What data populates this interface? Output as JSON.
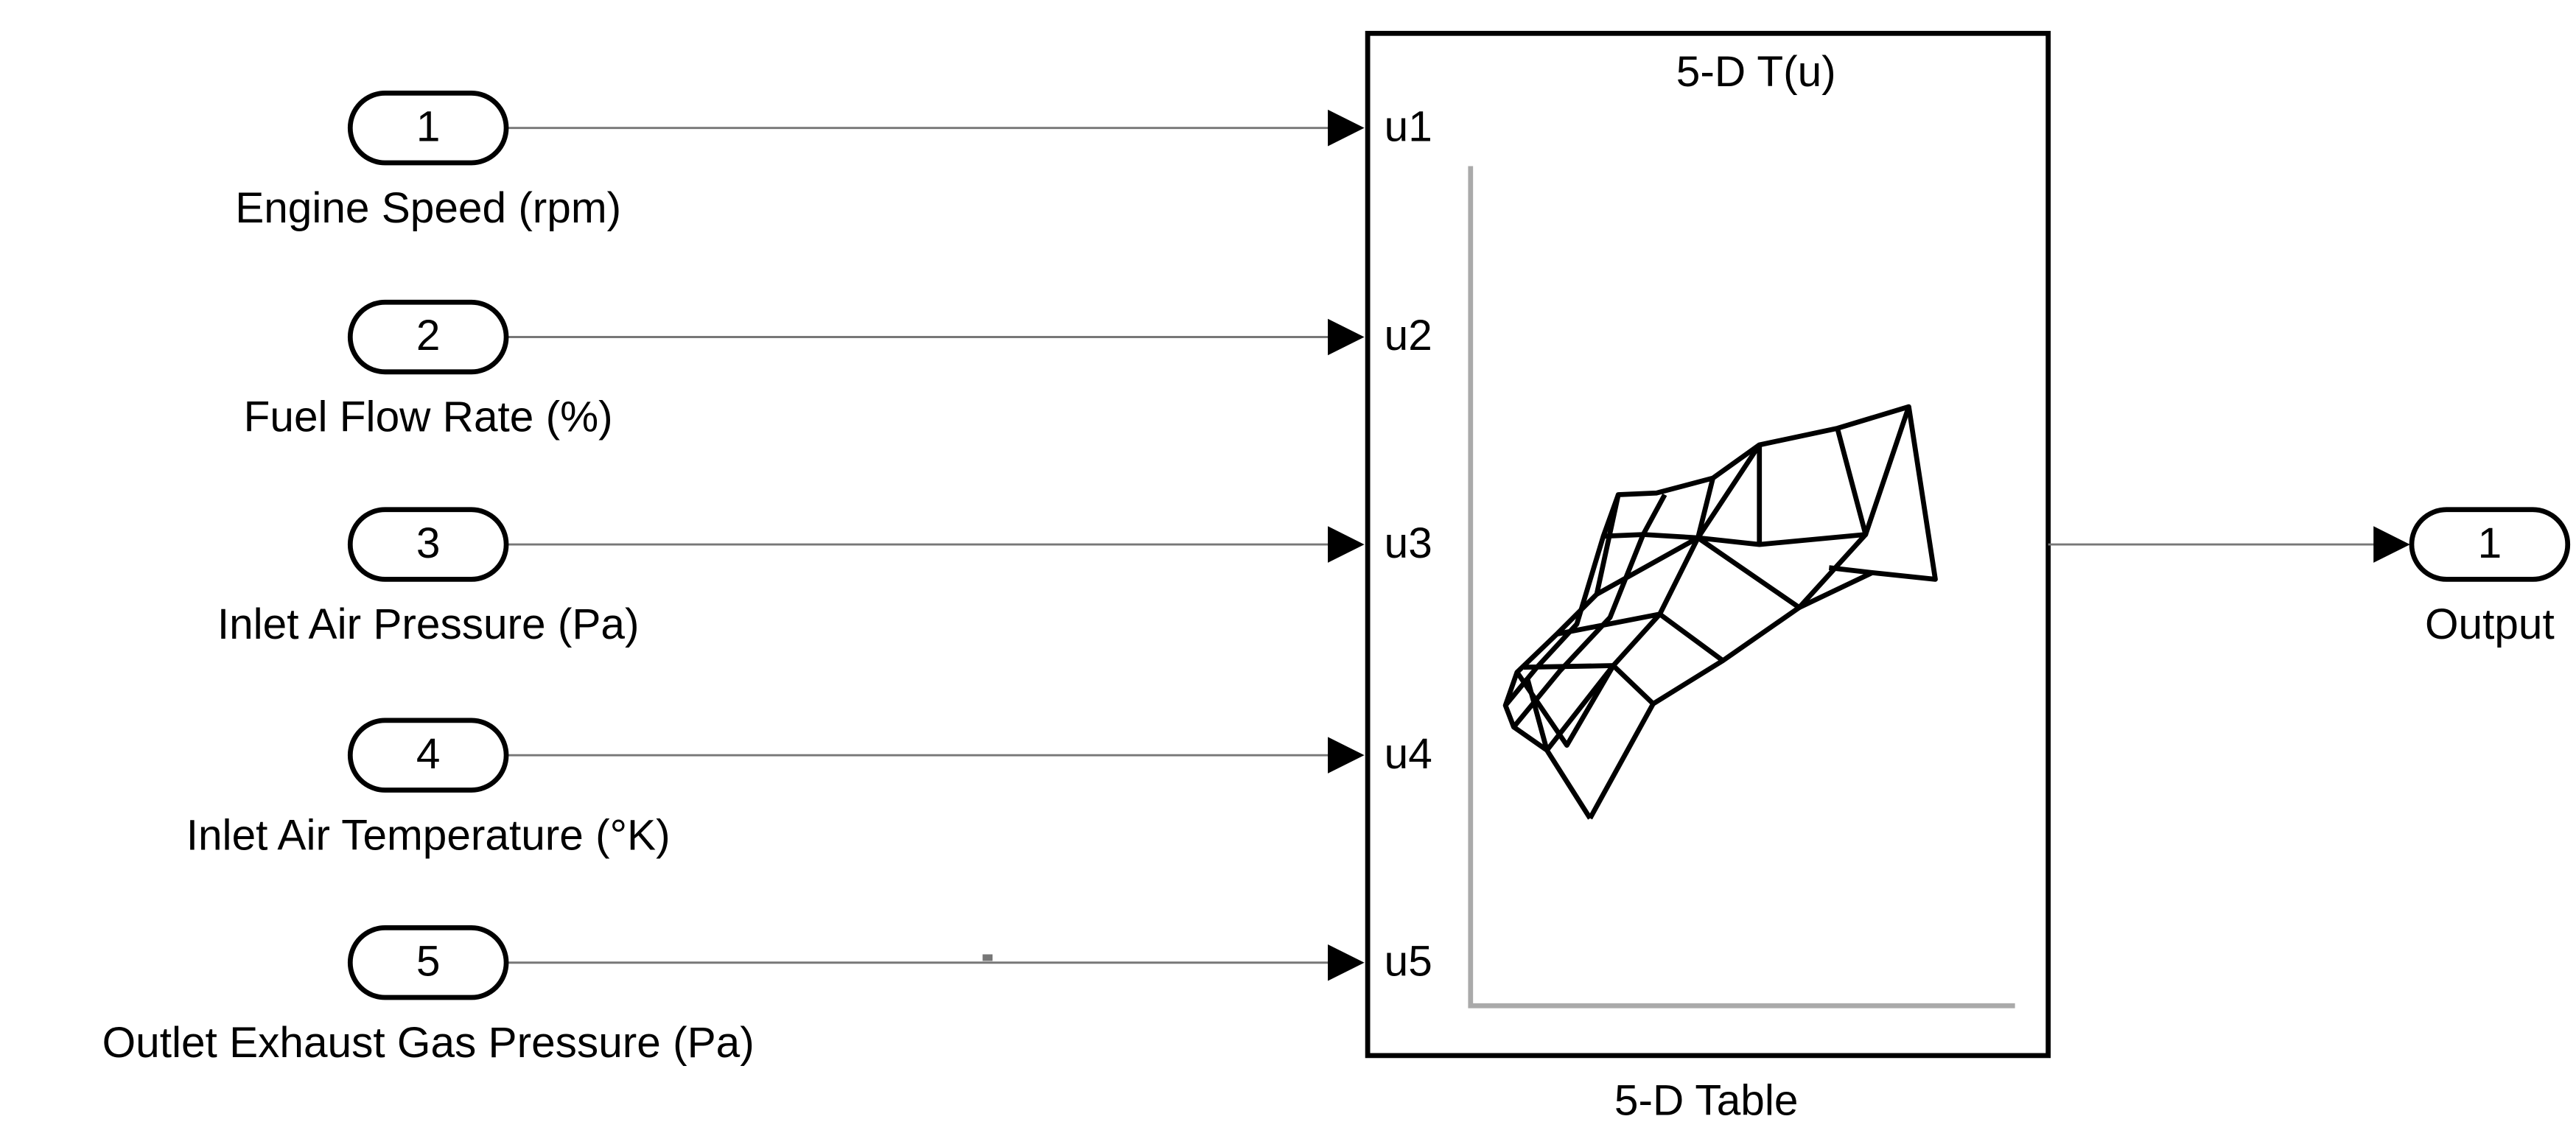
{
  "inports": [
    {
      "number": "1",
      "label": "Engine Speed (rpm)"
    },
    {
      "number": "2",
      "label": "Fuel Flow Rate (%)"
    },
    {
      "number": "3",
      "label": "Inlet Air Pressure (Pa)"
    },
    {
      "number": "4",
      "label": "Inlet Air Temperature (°K)"
    },
    {
      "number": "5",
      "label": "Outlet Exhaust Gas Pressure (Pa)"
    }
  ],
  "block": {
    "title": "5-D T(u)",
    "ports": [
      "u1",
      "u2",
      "u3",
      "u4",
      "u5"
    ],
    "name": "5-D Table"
  },
  "outports": [
    {
      "number": "1",
      "label": "Output"
    }
  ]
}
